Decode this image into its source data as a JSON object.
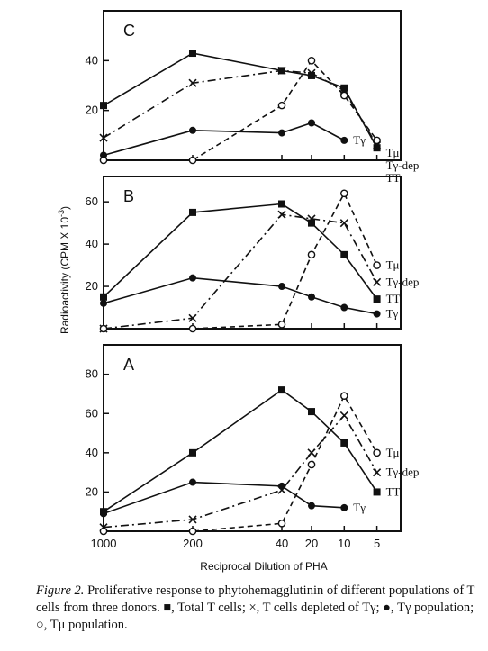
{
  "chart_data": [
    {
      "panel": "C",
      "type": "line",
      "x_ticks": [
        "1000",
        "200",
        "40",
        "20",
        "10",
        "5"
      ],
      "y_ticks": [
        "20",
        "40"
      ],
      "ylim": [
        0,
        60
      ],
      "series": [
        {
          "name": "TT",
          "marker": "square",
          "line": "solid",
          "points": [
            [
              "1000",
              22
            ],
            [
              "200",
              43
            ],
            [
              "40",
              36
            ],
            [
              "20",
              34
            ],
            [
              "10",
              29
            ],
            [
              "5",
              5
            ]
          ]
        },
        {
          "name": "Tγ-dep",
          "marker": "x",
          "line": "dashdot",
          "points": [
            [
              "1000",
              9
            ],
            [
              "200",
              31
            ],
            [
              "40",
              36
            ],
            [
              "20",
              35
            ],
            [
              "10",
              28
            ],
            [
              "5",
              6
            ]
          ]
        },
        {
          "name": "Tγ",
          "marker": "filled-circle",
          "line": "solid",
          "points": [
            [
              "1000",
              2
            ],
            [
              "200",
              12
            ],
            [
              "40",
              11
            ],
            [
              "20",
              15
            ],
            [
              "10",
              8
            ]
          ]
        },
        {
          "name": "Tμ",
          "marker": "open-circle",
          "line": "dashed",
          "points": [
            [
              "1000",
              0
            ],
            [
              "200",
              0
            ],
            [
              "40",
              22
            ],
            [
              "20",
              40
            ],
            [
              "10",
              26
            ],
            [
              "5",
              8
            ]
          ]
        }
      ]
    },
    {
      "panel": "B",
      "type": "line",
      "x_ticks": [
        "1000",
        "200",
        "40",
        "20",
        "10",
        "5"
      ],
      "y_ticks": [
        "20",
        "40",
        "60"
      ],
      "ylim": [
        0,
        72
      ],
      "series": [
        {
          "name": "TT",
          "marker": "square",
          "line": "solid",
          "points": [
            [
              "1000",
              15
            ],
            [
              "200",
              55
            ],
            [
              "40",
              59
            ],
            [
              "20",
              50
            ],
            [
              "10",
              35
            ],
            [
              "5",
              14
            ]
          ]
        },
        {
          "name": "Tγ-dep",
          "marker": "x",
          "line": "dashdot",
          "points": [
            [
              "1000",
              0
            ],
            [
              "200",
              5
            ],
            [
              "40",
              54
            ],
            [
              "20",
              52
            ],
            [
              "10",
              50
            ],
            [
              "5",
              22
            ]
          ]
        },
        {
          "name": "Tγ",
          "marker": "filled-circle",
          "line": "solid",
          "points": [
            [
              "1000",
              12
            ],
            [
              "200",
              24
            ],
            [
              "40",
              20
            ],
            [
              "20",
              15
            ],
            [
              "10",
              10
            ],
            [
              "5",
              7
            ]
          ]
        },
        {
          "name": "Tμ",
          "marker": "open-circle",
          "line": "dashed",
          "points": [
            [
              "1000",
              0
            ],
            [
              "200",
              0
            ],
            [
              "40",
              2
            ],
            [
              "20",
              35
            ],
            [
              "10",
              64
            ],
            [
              "5",
              30
            ]
          ]
        }
      ]
    },
    {
      "panel": "A",
      "type": "line",
      "x_ticks": [
        "1000",
        "200",
        "40",
        "20",
        "10",
        "5"
      ],
      "y_ticks": [
        "20",
        "40",
        "60",
        "80"
      ],
      "ylim": [
        0,
        95
      ],
      "xlabel": "Reciprocal Dilution of PHA",
      "series": [
        {
          "name": "TT",
          "marker": "square",
          "line": "solid",
          "points": [
            [
              "1000",
              10
            ],
            [
              "200",
              40
            ],
            [
              "40",
              72
            ],
            [
              "20",
              61
            ],
            [
              "10",
              45
            ],
            [
              "5",
              20
            ]
          ]
        },
        {
          "name": "Tγ-dep",
          "marker": "x",
          "line": "dashdot",
          "points": [
            [
              "1000",
              2
            ],
            [
              "200",
              6
            ],
            [
              "40",
              21
            ],
            [
              "20",
              40
            ],
            [
              "10",
              59
            ],
            [
              "5",
              30
            ]
          ]
        },
        {
          "name": "Tγ",
          "marker": "filled-circle",
          "line": "solid",
          "points": [
            [
              "1000",
              9
            ],
            [
              "200",
              25
            ],
            [
              "40",
              23
            ],
            [
              "20",
              13
            ],
            [
              "10",
              12
            ]
          ]
        },
        {
          "name": "Tμ",
          "marker": "open-circle",
          "line": "dashed",
          "points": [
            [
              "1000",
              0
            ],
            [
              "200",
              0
            ],
            [
              "40",
              4
            ],
            [
              "20",
              34
            ],
            [
              "10",
              69
            ],
            [
              "5",
              40
            ]
          ]
        }
      ]
    }
  ],
  "ylabel": "Radioactivity (CPM X 10",
  "ylabel_exp": "-3",
  "ylabel_close": ")",
  "caption": {
    "label": "Figure 2.",
    "text": "Proliferative response to phytohemagglutinin of different populations of T cells from three donors. ■, Total T cells; ×, T cells depleted of Tγ; ●, Tγ population; ○, Tμ population."
  }
}
